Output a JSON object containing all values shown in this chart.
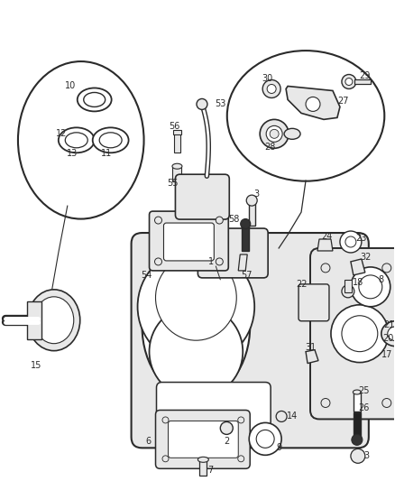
{
  "bg_color": "#ffffff",
  "fig_width": 4.38,
  "fig_height": 5.33,
  "dpi": 100,
  "line_color": "#2a2a2a",
  "light_gray": "#e8e8e8",
  "mid_gray": "#cccccc"
}
